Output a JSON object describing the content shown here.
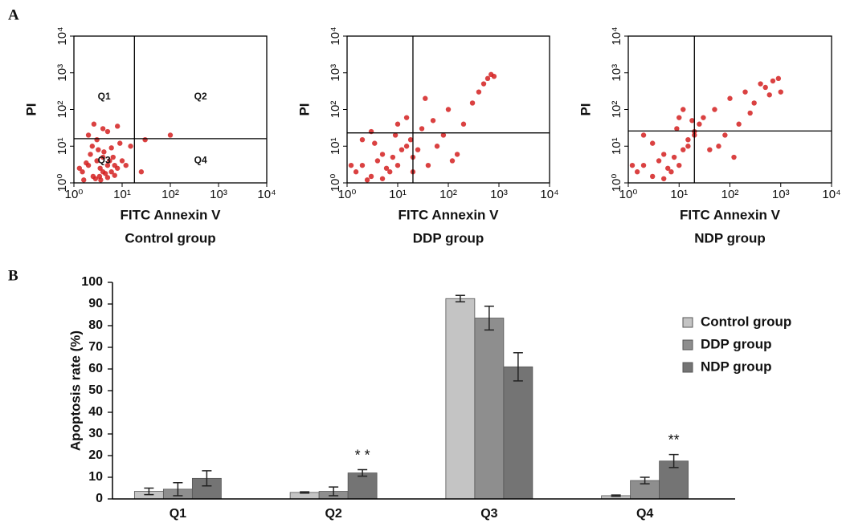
{
  "panel_labels": [
    "A",
    "B"
  ],
  "chart_data": [
    {
      "type": "scatter",
      "title": "Control group",
      "xlabel": "FITC Annexin V",
      "ylabel": "PI",
      "log_scale": true,
      "color": "#d42020",
      "xlim": [
        1,
        10000
      ],
      "ylim": [
        1,
        10000
      ],
      "xticks": [
        {
          "value": 1,
          "label": "10⁰"
        },
        {
          "value": 10,
          "label": "10¹"
        },
        {
          "value": 100,
          "label": "10²"
        },
        {
          "value": 1000,
          "label": "10³"
        },
        {
          "value": 10000,
          "label": "10⁴"
        }
      ],
      "yticks": [
        {
          "value": 1,
          "label": "10⁰"
        },
        {
          "value": 10,
          "label": "10¹"
        },
        {
          "value": 100,
          "label": "10²"
        },
        {
          "value": 1000,
          "label": "10³"
        },
        {
          "value": 10000,
          "label": "10⁴"
        }
      ],
      "gate": [
        18,
        16
      ],
      "quadrant_labels": [
        "Q1",
        "Q2",
        "Q3",
        "Q4"
      ],
      "x": [
        1.5,
        2,
        2.5,
        3,
        3.5,
        4,
        5,
        6,
        2.2,
        2.8,
        3.2,
        4.5,
        5.5,
        7,
        1.8,
        2.4,
        3.6,
        4.2,
        6.5,
        8,
        9,
        3,
        2,
        5,
        12,
        15,
        25,
        30,
        100,
        8,
        4,
        2.6,
        3.4,
        10,
        1.3,
        1.6,
        5,
        6,
        7,
        4
      ],
      "y": [
        2,
        3,
        1.5,
        4,
        2.5,
        5,
        3,
        2,
        6,
        1.3,
        8,
        1.8,
        4,
        3,
        3.5,
        10,
        1.2,
        7,
        5,
        2.5,
        12,
        15,
        20,
        25,
        3,
        10,
        2,
        15,
        20,
        35,
        30,
        40,
        1.5,
        4,
        2.5,
        1.2,
        1.4,
        9,
        1.6,
        2
      ]
    },
    {
      "type": "scatter",
      "title": "DDP group",
      "xlabel": "FITC Annexin V",
      "ylabel": "PI",
      "log_scale": true,
      "color": "#d42020",
      "xlim": [
        1,
        10000
      ],
      "ylim": [
        1,
        10000
      ],
      "xticks": [
        {
          "value": 1,
          "label": "10⁰"
        },
        {
          "value": 10,
          "label": "10¹"
        },
        {
          "value": 100,
          "label": "10²"
        },
        {
          "value": 1000,
          "label": "10³"
        },
        {
          "value": 10000,
          "label": "10⁴"
        }
      ],
      "yticks": [
        {
          "value": 1,
          "label": "10⁰"
        },
        {
          "value": 10,
          "label": "10¹"
        },
        {
          "value": 100,
          "label": "10²"
        },
        {
          "value": 1000,
          "label": "10³"
        },
        {
          "value": 10000,
          "label": "10⁴"
        }
      ],
      "gate": [
        20,
        23
      ],
      "x": [
        1.5,
        2,
        3,
        4,
        5,
        6,
        8,
        10,
        12,
        15,
        2.5,
        3.5,
        1.2,
        7,
        9,
        18,
        20,
        25,
        30,
        40,
        50,
        60,
        80,
        100,
        150,
        200,
        300,
        400,
        500,
        600,
        700,
        800,
        15,
        20,
        3,
        5,
        2,
        10,
        35,
        120
      ],
      "y": [
        2,
        3,
        1.5,
        4,
        6,
        2.5,
        5,
        3,
        8,
        10,
        1.2,
        12,
        3,
        2,
        20,
        15,
        5,
        8,
        30,
        3,
        50,
        10,
        20,
        100,
        6,
        40,
        150,
        300,
        500,
        700,
        900,
        800,
        60,
        2,
        25,
        1.3,
        15,
        40,
        200,
        4
      ]
    },
    {
      "type": "scatter",
      "title": "NDP group",
      "xlabel": "FITC Annexin V",
      "ylabel": "PI",
      "log_scale": true,
      "color": "#d42020",
      "xlim": [
        1,
        10000
      ],
      "ylim": [
        1,
        10000
      ],
      "xticks": [
        {
          "value": 1,
          "label": "10⁰"
        },
        {
          "value": 10,
          "label": "10¹"
        },
        {
          "value": 100,
          "label": "10²"
        },
        {
          "value": 1000,
          "label": "10³"
        },
        {
          "value": 10000,
          "label": "10⁴"
        }
      ],
      "yticks": [
        {
          "value": 1,
          "label": "10⁰"
        },
        {
          "value": 10,
          "label": "10¹"
        },
        {
          "value": 100,
          "label": "10²"
        },
        {
          "value": 1000,
          "label": "10³"
        },
        {
          "value": 10000,
          "label": "10⁴"
        }
      ],
      "gate": [
        20,
        26
      ],
      "x": [
        1.5,
        2,
        3,
        4,
        5,
        6,
        8,
        10,
        12,
        15,
        20,
        25,
        1.2,
        7,
        9,
        18,
        30,
        40,
        50,
        80,
        100,
        150,
        200,
        300,
        400,
        500,
        700,
        1000,
        15,
        20,
        3,
        5,
        2,
        10,
        60,
        120,
        250,
        600,
        900,
        12
      ],
      "y": [
        2,
        3,
        1.5,
        4,
        6,
        2.5,
        5,
        3,
        8,
        10,
        20,
        40,
        3,
        2,
        30,
        50,
        60,
        8,
        100,
        20,
        200,
        40,
        300,
        150,
        500,
        400,
        600,
        300,
        15,
        25,
        12,
        1.3,
        20,
        60,
        10,
        5,
        80,
        250,
        700,
        100
      ]
    },
    {
      "type": "bar",
      "ylabel": "Apoptosis rate (%)",
      "categories": [
        "Q1",
        "Q2",
        "Q3",
        "Q4"
      ],
      "ylim": [
        0,
        100
      ],
      "yticks": [
        0,
        10,
        20,
        30,
        40,
        50,
        60,
        70,
        80,
        90,
        100
      ],
      "grid": false,
      "series": [
        {
          "name": "Control group",
          "color": "#c4c4c4",
          "values": [
            3.5,
            3,
            92.5,
            1.5
          ],
          "errors": [
            1.5,
            0.3,
            1.5,
            0.3
          ]
        },
        {
          "name": "DDP group",
          "color": "#8e8e8e",
          "values": [
            4.5,
            3.5,
            83.5,
            8.5
          ],
          "errors": [
            3,
            2,
            5.5,
            1.5
          ]
        },
        {
          "name": "NDP group",
          "color": "#747474",
          "values": [
            9.5,
            12,
            61,
            17.5
          ],
          "errors": [
            3.5,
            1.5,
            6.5,
            3
          ],
          "value_annotations": [
            null,
            "* *",
            null,
            "**"
          ]
        }
      ]
    }
  ]
}
